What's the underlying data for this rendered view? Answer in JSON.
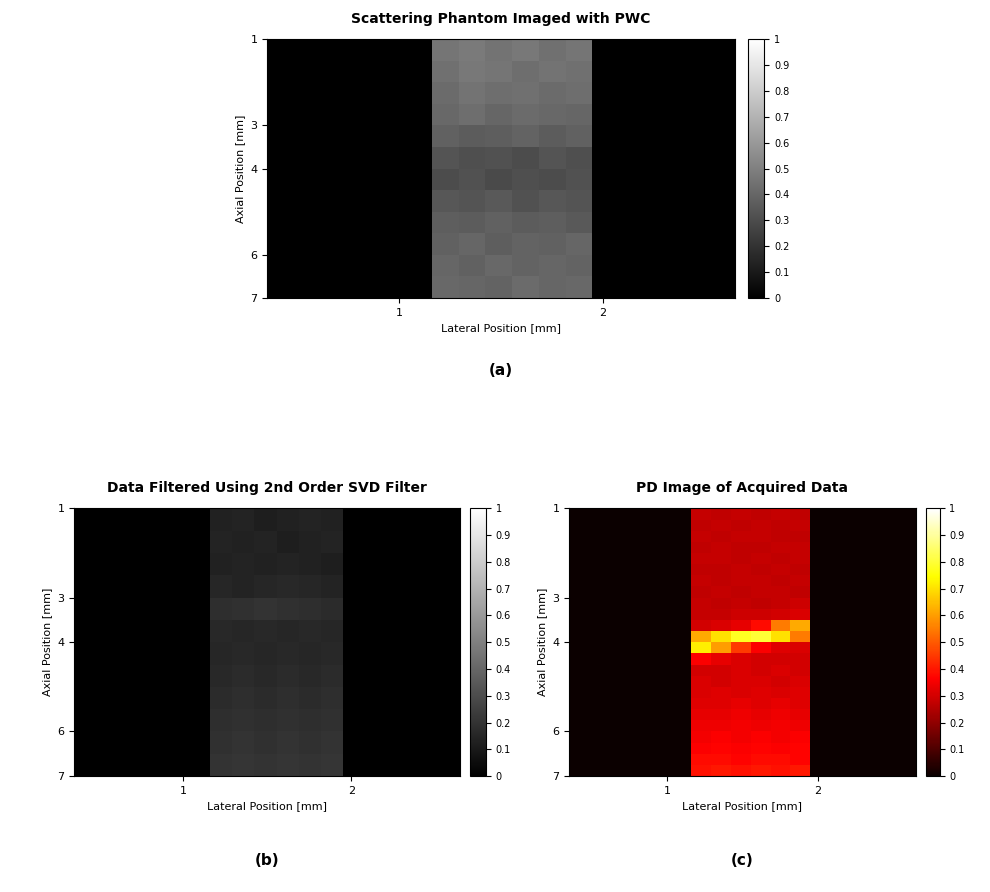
{
  "chart_data": [
    {
      "type": "heatmap",
      "title": "Scattering Phantom Imaged with PWC",
      "caption": "(a)",
      "x_label": "Lateral Position [mm]",
      "y_label": "Axial Position [mm]",
      "xlim": [
        0.35,
        2.65
      ],
      "xticks": [
        1,
        2
      ],
      "ylim": [
        7,
        1
      ],
      "yticks": [
        1,
        3,
        4,
        6,
        7
      ],
      "color": "gray",
      "cell_x": [
        1.16,
        1.95
      ],
      "cell_y": [
        1,
        7
      ],
      "cells": [
        [
          0.46,
          0.48,
          0.45,
          0.47,
          0.44,
          0.46
        ],
        [
          0.44,
          0.47,
          0.46,
          0.43,
          0.45,
          0.44
        ],
        [
          0.42,
          0.45,
          0.43,
          0.44,
          0.42,
          0.43
        ],
        [
          0.41,
          0.43,
          0.4,
          0.42,
          0.41,
          0.4
        ],
        [
          0.38,
          0.36,
          0.37,
          0.39,
          0.36,
          0.38
        ],
        [
          0.33,
          0.31,
          0.32,
          0.3,
          0.33,
          0.31
        ],
        [
          0.3,
          0.32,
          0.29,
          0.31,
          0.3,
          0.32
        ],
        [
          0.34,
          0.33,
          0.35,
          0.32,
          0.34,
          0.33
        ],
        [
          0.37,
          0.36,
          0.38,
          0.36,
          0.37,
          0.35
        ],
        [
          0.38,
          0.4,
          0.37,
          0.39,
          0.38,
          0.4
        ],
        [
          0.4,
          0.38,
          0.41,
          0.39,
          0.4,
          0.39
        ],
        [
          0.41,
          0.4,
          0.39,
          0.42,
          0.4,
          0.41
        ]
      ],
      "colorbar_range": [
        0,
        1
      ],
      "colorbar_ticks": [
        0,
        0.1,
        0.2,
        0.3,
        0.4,
        0.5,
        0.6,
        0.7,
        0.8,
        0.9,
        1
      ]
    },
    {
      "type": "heatmap",
      "title": "Data Filtered Using 2nd Order SVD Filter",
      "caption": "(b)",
      "x_label": "Lateral Position [mm]",
      "y_label": "Axial Position [mm]",
      "xlim": [
        0.35,
        2.65
      ],
      "xticks": [
        1,
        2
      ],
      "ylim": [
        7,
        1
      ],
      "yticks": [
        1,
        3,
        4,
        6,
        7
      ],
      "color": "gray",
      "cell_x": [
        1.16,
        1.95
      ],
      "cell_y": [
        1,
        7
      ],
      "cells": [
        [
          0.13,
          0.14,
          0.12,
          0.13,
          0.14,
          0.13
        ],
        [
          0.14,
          0.13,
          0.14,
          0.12,
          0.13,
          0.14
        ],
        [
          0.13,
          0.14,
          0.13,
          0.14,
          0.13,
          0.12
        ],
        [
          0.15,
          0.14,
          0.15,
          0.16,
          0.15,
          0.14
        ],
        [
          0.18,
          0.19,
          0.2,
          0.19,
          0.18,
          0.17
        ],
        [
          0.16,
          0.15,
          0.16,
          0.15,
          0.16,
          0.15
        ],
        [
          0.15,
          0.16,
          0.15,
          0.16,
          0.15,
          0.16
        ],
        [
          0.16,
          0.17,
          0.16,
          0.17,
          0.16,
          0.17
        ],
        [
          0.17,
          0.18,
          0.17,
          0.18,
          0.17,
          0.18
        ],
        [
          0.18,
          0.19,
          0.18,
          0.19,
          0.18,
          0.19
        ],
        [
          0.19,
          0.2,
          0.19,
          0.2,
          0.19,
          0.2
        ],
        [
          0.2,
          0.21,
          0.2,
          0.21,
          0.2,
          0.21
        ]
      ],
      "colorbar_range": [
        0,
        1
      ],
      "colorbar_ticks": [
        0,
        0.1,
        0.2,
        0.3,
        0.4,
        0.5,
        0.6,
        0.7,
        0.8,
        0.9,
        1
      ]
    },
    {
      "type": "heatmap",
      "title": "PD Image of Acquired Data",
      "caption": "(c)",
      "x_label": "Lateral Position [mm]",
      "y_label": "Axial Position [mm]",
      "xlim": [
        0.35,
        2.65
      ],
      "xticks": [
        1,
        2
      ],
      "ylim": [
        7,
        1
      ],
      "yticks": [
        1,
        3,
        4,
        6,
        7
      ],
      "color": "hot",
      "cell_x": [
        1.16,
        1.95
      ],
      "cell_y": [
        1,
        7
      ],
      "cells": [
        [
          0.28,
          0.27,
          0.28,
          0.27,
          0.28,
          0.27
        ],
        [
          0.27,
          0.28,
          0.27,
          0.28,
          0.27,
          0.28
        ],
        [
          0.28,
          0.27,
          0.28,
          0.28,
          0.27,
          0.27
        ],
        [
          0.27,
          0.28,
          0.27,
          0.27,
          0.28,
          0.28
        ],
        [
          0.28,
          0.28,
          0.27,
          0.28,
          0.27,
          0.28
        ],
        [
          0.27,
          0.27,
          0.28,
          0.27,
          0.28,
          0.27
        ],
        [
          0.28,
          0.27,
          0.28,
          0.28,
          0.27,
          0.28
        ],
        [
          0.27,
          0.28,
          0.27,
          0.28,
          0.28,
          0.27
        ],
        [
          0.28,
          0.27,
          0.28,
          0.27,
          0.28,
          0.29
        ],
        [
          0.28,
          0.28,
          0.29,
          0.29,
          0.3,
          0.31
        ],
        [
          0.3,
          0.31,
          0.33,
          0.38,
          0.55,
          0.62
        ],
        [
          0.62,
          0.7,
          0.78,
          0.8,
          0.7,
          0.55
        ],
        [
          0.72,
          0.6,
          0.45,
          0.36,
          0.32,
          0.31
        ],
        [
          0.36,
          0.33,
          0.31,
          0.3,
          0.3,
          0.3
        ],
        [
          0.3,
          0.3,
          0.31,
          0.3,
          0.31,
          0.3
        ],
        [
          0.31,
          0.3,
          0.31,
          0.31,
          0.3,
          0.31
        ],
        [
          0.31,
          0.32,
          0.31,
          0.32,
          0.31,
          0.32
        ],
        [
          0.32,
          0.32,
          0.33,
          0.32,
          0.33,
          0.32
        ],
        [
          0.33,
          0.33,
          0.34,
          0.33,
          0.34,
          0.33
        ],
        [
          0.34,
          0.34,
          0.35,
          0.34,
          0.35,
          0.34
        ],
        [
          0.35,
          0.36,
          0.35,
          0.36,
          0.35,
          0.36
        ],
        [
          0.36,
          0.37,
          0.36,
          0.37,
          0.36,
          0.37
        ],
        [
          0.38,
          0.38,
          0.37,
          0.38,
          0.38,
          0.37
        ],
        [
          0.39,
          0.4,
          0.39,
          0.4,
          0.39,
          0.4
        ]
      ],
      "colorbar_range": [
        0,
        1
      ],
      "colorbar_ticks": [
        0,
        0.1,
        0.2,
        0.3,
        0.4,
        0.5,
        0.6,
        0.7,
        0.8,
        0.9,
        1
      ]
    }
  ]
}
